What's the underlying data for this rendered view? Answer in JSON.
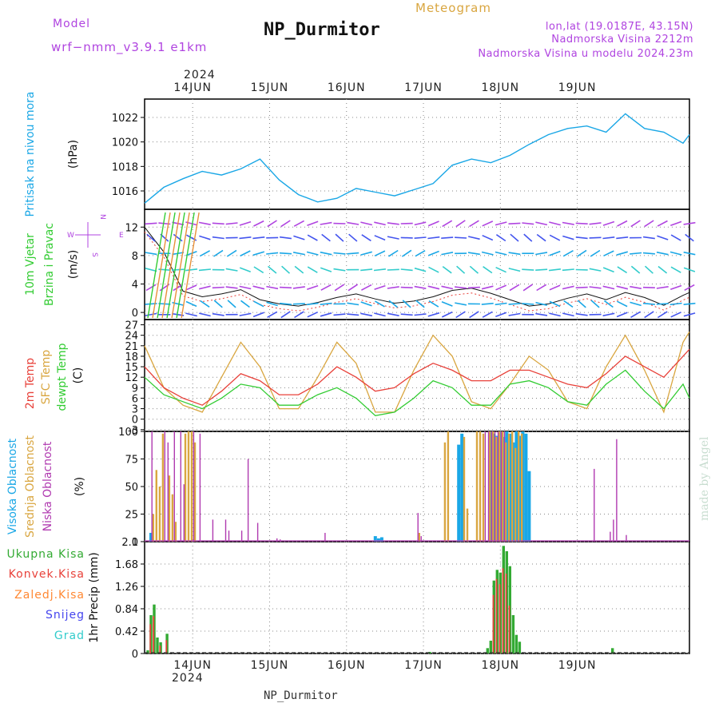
{
  "header": {
    "model_label": "Model",
    "model_name": "wrf−nmm_v3.9.1  e1km",
    "meteogram_label": "Meteogram",
    "station": "NP_Durmitor",
    "lonlat": "lon,lat (19.0187E, 43.15N)",
    "elevation": "Nadmorska Visina 2212m",
    "model_elevation": "Nadmorska Visina u modelu 2024.23m"
  },
  "time_axis": {
    "year": "2024",
    "days": [
      "14JUN",
      "15JUN",
      "16JUN",
      "17JUN",
      "18JUN",
      "19JUN"
    ]
  },
  "footer": {
    "station": "NP_Durmitor",
    "credit": "made by Angel"
  },
  "colors": {
    "pressure": "#1aa7e6",
    "temp": "#e8413a",
    "sfc_temp": "#d9a640",
    "dewpt": "#33cc33",
    "cloud_high": "#1aa7e6",
    "cloud_mid": "#d9a640",
    "cloud_low": "#b03ab0",
    "precip_total": "#33aa33",
    "precip_conv": "#e8413a",
    "precip_strat": "#ff8833",
    "snow": "#4444ee",
    "graupel": "#33cccc",
    "wind_label": "#b044e0"
  },
  "panels": {
    "pressure": {
      "ylabel": "Pritisak na nivou mora",
      "unit": "(hPa)"
    },
    "wind": {
      "ylabel1": "10m Vjetar",
      "ylabel2": "Brzina i Pravac",
      "unit": "(m/s)",
      "compass": [
        "N",
        "E",
        "S",
        "W"
      ]
    },
    "temp": {
      "ylabel1": "2m Temp",
      "ylabel2": "SFC Temp",
      "ylabel3": "dewpt Temp",
      "unit": "(C)"
    },
    "cloud": {
      "ylabel1": "Visoka Oblacnost",
      "ylabel2": "Srednja Oblacnost",
      "ylabel3": "Niska Oblacnost",
      "unit": "(%)"
    },
    "precip": {
      "legend": [
        "Ukupna Kisa",
        "Konvek.Kisa",
        "Zaledj.Kisa",
        "Snijeg",
        "Grad"
      ],
      "ylabel": "1hr Precip (mm)"
    }
  },
  "chart_data": [
    {
      "type": "line",
      "title": "",
      "ylabel": "Pritisak na nivou mora (hPa)",
      "ylim": [
        1014.5,
        1023.5
      ],
      "yticks": [
        1016,
        1018,
        1020,
        1022
      ],
      "x_hours": [
        0,
        6,
        12,
        18,
        24,
        30,
        36,
        42,
        48,
        54,
        60,
        66,
        72,
        78,
        84,
        90,
        96,
        102,
        108,
        114,
        120,
        126,
        132,
        138,
        144,
        150,
        156,
        162,
        168,
        170
      ],
      "series": [
        {
          "values": [
            1015.0,
            1016.3,
            1017.0,
            1017.6,
            1017.3,
            1017.8,
            1018.6,
            1016.9,
            1015.7,
            1015.1,
            1015.4,
            1016.2,
            1015.9,
            1015.6,
            1016.1,
            1016.6,
            1018.1,
            1018.6,
            1018.3,
            1018.9,
            1019.8,
            1020.6,
            1021.1,
            1021.3,
            1020.8,
            1022.3,
            1021.1,
            1020.8,
            1019.9,
            1020.6
          ]
        }
      ]
    },
    {
      "type": "line",
      "title": "",
      "ylabel": "10m Vjetar Brzina i Pravac (m/s)",
      "ylim": [
        -1,
        14.5
      ],
      "yticks": [
        0,
        4,
        8,
        12
      ],
      "x_hours": [
        0,
        6,
        12,
        18,
        24,
        30,
        36,
        42,
        48,
        54,
        60,
        66,
        72,
        78,
        84,
        90,
        96,
        102,
        108,
        114,
        120,
        126,
        132,
        138,
        144,
        150,
        156,
        162,
        168,
        170
      ],
      "series": [
        {
          "values": [
            12.0,
            8.5,
            3.0,
            2.2,
            2.6,
            3.2,
            1.8,
            1.2,
            0.9,
            1.4,
            2.1,
            2.6,
            1.9,
            1.3,
            1.6,
            2.2,
            3.1,
            3.4,
            2.7,
            1.8,
            0.9,
            1.2,
            2.0,
            2.6,
            1.8,
            2.8,
            2.1,
            1.0,
            2.4,
            2.8
          ]
        }
      ]
    },
    {
      "type": "line",
      "title": "",
      "ylabel": "2m Temp / SFC Temp / dewpt Temp (C)",
      "ylim": [
        -3.5,
        28.5
      ],
      "yticks": [
        -3,
        0,
        3,
        6,
        9,
        12,
        15,
        18,
        21,
        24,
        27
      ],
      "x_hours": [
        0,
        6,
        12,
        18,
        24,
        30,
        36,
        42,
        48,
        54,
        60,
        66,
        72,
        78,
        84,
        90,
        96,
        102,
        108,
        114,
        120,
        126,
        132,
        138,
        144,
        150,
        156,
        162,
        168,
        170
      ],
      "series": [
        {
          "name": "2m Temp",
          "values": [
            15,
            9,
            6,
            4,
            8,
            13,
            11,
            7,
            7,
            10,
            15,
            12,
            8,
            9,
            13,
            16,
            14,
            11,
            11,
            14,
            14,
            12,
            10,
            9,
            13,
            18,
            15,
            12,
            18,
            20
          ]
        },
        {
          "name": "SFC Temp",
          "values": [
            21,
            9,
            4,
            2,
            12,
            22,
            15,
            3,
            3,
            12,
            22,
            16,
            2,
            2,
            14,
            24,
            18,
            5,
            3,
            10,
            18,
            14,
            5,
            3,
            15,
            24,
            14,
            2,
            22,
            25
          ]
        },
        {
          "name": "dewpt Temp",
          "values": [
            12,
            7,
            5,
            3,
            6,
            10,
            9,
            4,
            4,
            7,
            9,
            6,
            1,
            2,
            6,
            11,
            9,
            4,
            4,
            10,
            11,
            9,
            5,
            4,
            10,
            14,
            8,
            3,
            10,
            6
          ]
        }
      ]
    },
    {
      "type": "bar",
      "title": "",
      "ylabel": "Visoka / Srednja / Niska Oblacnost (%)",
      "ylim": [
        0,
        100
      ],
      "yticks": [
        0,
        25,
        50,
        75,
        100
      ],
      "series": [
        {
          "name": "Visoka Oblacnost",
          "x_hours": [
            2,
            72,
            73,
            74,
            98,
            99,
            108,
            109,
            110,
            111,
            112,
            113,
            114,
            115,
            116,
            117,
            118,
            119,
            120
          ],
          "values": [
            8,
            5,
            3,
            4,
            88,
            98,
            100,
            98,
            96,
            100,
            95,
            100,
            98,
            90,
            100,
            96,
            100,
            98,
            64
          ]
        },
        {
          "name": "Srednja Oblacnost",
          "x_hours": [
            3,
            4,
            5,
            6,
            8,
            9,
            10,
            13,
            14,
            15,
            16,
            86,
            94,
            95,
            100,
            101,
            104,
            105,
            106,
            108,
            109,
            110,
            111,
            112,
            113,
            114,
            115,
            116,
            117,
            118
          ],
          "values": [
            25,
            65,
            50,
            98,
            60,
            43,
            18,
            98,
            100,
            100,
            90,
            8,
            90,
            100,
            95,
            30,
            100,
            100,
            98,
            100,
            100,
            95,
            100,
            100,
            90,
            98,
            100,
            85,
            100,
            98
          ]
        },
        {
          "name": "Niska Oblacnost",
          "x_hours": [
            2,
            6,
            7,
            9,
            11,
            12,
            15,
            17,
            21,
            25,
            26,
            30,
            32,
            35,
            41,
            42,
            56,
            85,
            86,
            106,
            107,
            108,
            109,
            110,
            111,
            112,
            140,
            145,
            146,
            147,
            150
          ],
          "values": [
            100,
            100,
            90,
            100,
            100,
            52,
            100,
            98,
            20,
            20,
            10,
            10,
            75,
            17,
            3,
            2,
            8,
            26,
            5,
            100,
            100,
            100,
            100,
            100,
            100,
            100,
            66,
            9,
            20,
            93,
            6
          ]
        }
      ]
    },
    {
      "type": "bar",
      "title": "",
      "ylabel": "1hr Precip (mm)",
      "ylim": [
        0,
        2.1
      ],
      "yticks": [
        0,
        0.42,
        0.84,
        1.26,
        1.68,
        2.1
      ],
      "series": [
        {
          "name": "Ukupna Kisa",
          "x_hours": [
            1,
            2,
            3,
            4,
            5,
            7,
            89,
            107,
            108,
            109,
            110,
            111,
            112,
            113,
            114,
            115,
            116,
            117,
            146
          ],
          "values": [
            0.06,
            0.72,
            0.92,
            0.3,
            0.21,
            0.37,
            0.03,
            0.1,
            0.24,
            1.37,
            1.57,
            1.52,
            2.02,
            1.92,
            1.64,
            0.72,
            0.35,
            0.22,
            0.1
          ]
        },
        {
          "name": "Konvek.Kisa",
          "x_hours": [
            2,
            3,
            5,
            7,
            109,
            110,
            111,
            112,
            113,
            114
          ],
          "values": [
            0.55,
            0.7,
            0.15,
            0.25,
            1.1,
            1.4,
            1.3,
            1.6,
            1.5,
            0.9
          ]
        }
      ]
    }
  ]
}
